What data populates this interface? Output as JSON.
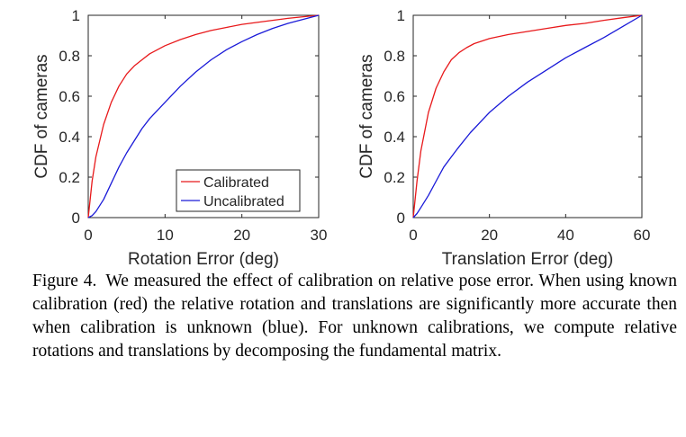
{
  "chart_data": [
    {
      "type": "line",
      "title": "",
      "xlabel": "Rotation Error (deg)",
      "ylabel": "CDF of cameras",
      "xlim": [
        0,
        30
      ],
      "ylim": [
        0,
        1
      ],
      "xticks": [
        0,
        10,
        20,
        30
      ],
      "yticks": [
        0,
        0.2,
        0.4,
        0.6,
        0.8,
        1
      ],
      "grid": false,
      "legend": "bottom-right",
      "series": [
        {
          "name": "Calibrated",
          "color": "#e8191b",
          "x": [
            0,
            0.5,
            1,
            2,
            3,
            4,
            5,
            6,
            7,
            8,
            10,
            12,
            14,
            16,
            18,
            20,
            22,
            24,
            26,
            28,
            30
          ],
          "y": [
            0,
            0.18,
            0.3,
            0.46,
            0.57,
            0.65,
            0.71,
            0.75,
            0.78,
            0.81,
            0.85,
            0.88,
            0.905,
            0.925,
            0.94,
            0.955,
            0.965,
            0.975,
            0.985,
            0.993,
            1
          ]
        },
        {
          "name": "Uncalibrated",
          "color": "#1a1ad8",
          "x": [
            0,
            0.5,
            1,
            2,
            3,
            4,
            5,
            6,
            7,
            8,
            10,
            12,
            14,
            16,
            18,
            20,
            22,
            24,
            26,
            28,
            30
          ],
          "y": [
            0,
            0.01,
            0.03,
            0.09,
            0.17,
            0.25,
            0.32,
            0.38,
            0.44,
            0.49,
            0.57,
            0.65,
            0.72,
            0.78,
            0.83,
            0.87,
            0.905,
            0.935,
            0.96,
            0.98,
            1
          ]
        }
      ]
    },
    {
      "type": "line",
      "title": "",
      "xlabel": "Translation Error (deg)",
      "ylabel": "CDF of cameras",
      "xlim": [
        0,
        60
      ],
      "ylim": [
        0,
        1
      ],
      "xticks": [
        0,
        20,
        40,
        60
      ],
      "yticks": [
        0,
        0.2,
        0.4,
        0.6,
        0.8,
        1
      ],
      "grid": false,
      "legend": "",
      "series": [
        {
          "name": "Calibrated",
          "color": "#e8191b",
          "x": [
            0,
            1,
            2,
            4,
            6,
            8,
            10,
            12,
            14,
            16,
            20,
            25,
            30,
            35,
            40,
            45,
            50,
            55,
            60
          ],
          "y": [
            0,
            0.18,
            0.33,
            0.52,
            0.64,
            0.72,
            0.78,
            0.815,
            0.84,
            0.86,
            0.885,
            0.905,
            0.92,
            0.935,
            0.95,
            0.96,
            0.975,
            0.988,
            1
          ]
        },
        {
          "name": "Uncalibrated",
          "color": "#1a1ad8",
          "x": [
            0,
            1,
            2,
            4,
            6,
            8,
            10,
            12,
            15,
            20,
            25,
            30,
            35,
            40,
            45,
            50,
            55,
            60
          ],
          "y": [
            0,
            0.02,
            0.05,
            0.11,
            0.18,
            0.25,
            0.3,
            0.35,
            0.42,
            0.52,
            0.6,
            0.67,
            0.73,
            0.79,
            0.84,
            0.89,
            0.945,
            1
          ]
        }
      ]
    }
  ],
  "legend": {
    "items": [
      "Calibrated",
      "Uncalibrated"
    ]
  },
  "caption": {
    "label": "Figure 4.",
    "text": "We measured the effect of calibration on relative pose error. When using known calibration (red) the relative rotation and translations are significantly more accurate then when calibration is unknown (blue). For unknown calibrations, we compute relative rotations and translations by decomposing the fundamental matrix."
  }
}
